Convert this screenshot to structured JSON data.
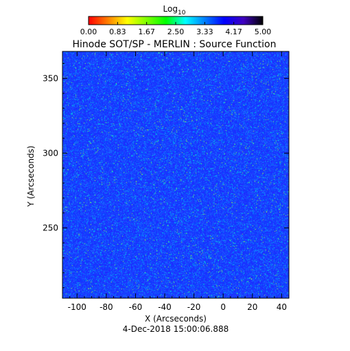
{
  "chart_data": {
    "type": "heatmap",
    "title": "Hinode SOT/SP - MERLIN : Source Function",
    "xlabel": "X (Arcseconds)",
    "ylabel": "Y (Arcseconds)",
    "date": "4-Dec-2018 15:00:06.888",
    "xlim": [
      -110,
      45
    ],
    "ylim": [
      203,
      368
    ],
    "x_ticks": [
      -100,
      -80,
      -60,
      -40,
      -20,
      0,
      20,
      40
    ],
    "y_ticks": [
      250,
      300,
      350
    ],
    "colorbar": {
      "label_base": "Log",
      "label_sub": "10",
      "range": [
        0,
        5
      ],
      "tick_labels": [
        "0.00",
        "0.83",
        "1.67",
        "2.50",
        "3.33",
        "4.17",
        "5.00"
      ],
      "colors": [
        "#ff0000",
        "#ff7f00",
        "#ffff00",
        "#7fff00",
        "#00ff00",
        "#00ffff",
        "#007fff",
        "#0000ff",
        "#3f00bf",
        "#000000"
      ]
    },
    "dominant_value_range": [
      2.9,
      3.6
    ],
    "image_colors": [
      "#1e2cff",
      "#0b44ff",
      "#2055ff",
      "#1a6bff",
      "#00a8ff",
      "#00e6d2",
      "#8cff4a"
    ]
  }
}
